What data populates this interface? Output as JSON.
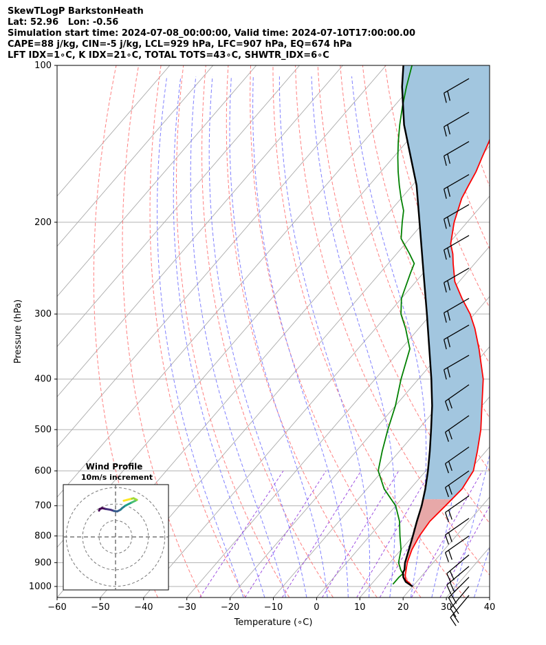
{
  "header": {
    "line1": "SkewTLogP BarkstonHeath",
    "line2": "Lat: 52.96   Lon: -0.56",
    "line3": "Simulation start time: 2024-07-08_00:00:00, Valid time: 2024-07-10T17:00:00.00",
    "line4": "CAPE=88 j/kg, CIN=-5 j/kg, LCL=929 hPa, LFC=907 hPa, EQ=674 hPa",
    "line5": "LFT IDX=1∘C, K IDX=21∘C, TOTAL TOTS=43∘C, SHWTR_IDX=6∘C"
  },
  "chart_data": {
    "type": "skewt",
    "xlabel": "Temperature (∘C)",
    "ylabel": "Pressure (hPa)",
    "xlim": [
      -60,
      40
    ],
    "ylim": [
      1050,
      100
    ],
    "x_ticks": [
      -60,
      -50,
      -40,
      -30,
      -20,
      -10,
      0,
      10,
      20,
      30,
      40
    ],
    "y_ticks": [
      1000,
      900,
      800,
      700,
      600,
      500,
      400,
      300,
      200,
      100
    ],
    "grid": true,
    "temperature": {
      "color": "#ff0000",
      "points": [
        [
          1000,
          20
        ],
        [
          970,
          17
        ],
        [
          950,
          16
        ],
        [
          900,
          14
        ],
        [
          850,
          12.5
        ],
        [
          800,
          11.5
        ],
        [
          750,
          11
        ],
        [
          700,
          11.5
        ],
        [
          650,
          12
        ],
        [
          600,
          11
        ],
        [
          550,
          8
        ],
        [
          500,
          4.5
        ],
        [
          450,
          0
        ],
        [
          400,
          -5
        ],
        [
          350,
          -12
        ],
        [
          320,
          -17
        ],
        [
          300,
          -21
        ],
        [
          280,
          -26
        ],
        [
          260,
          -31
        ],
        [
          240,
          -35
        ],
        [
          230,
          -37
        ],
        [
          220,
          -39.5
        ],
        [
          200,
          -43
        ],
        [
          180,
          -46
        ],
        [
          170,
          -47
        ],
        [
          160,
          -48
        ],
        [
          150,
          -49.5
        ],
        [
          140,
          -51
        ],
        [
          130,
          -53
        ],
        [
          120,
          -56
        ],
        [
          110,
          -60
        ],
        [
          100,
          -65
        ]
      ]
    },
    "dewpoint": {
      "color": "#008000",
      "points": [
        [
          990,
          15
        ],
        [
          960,
          15
        ],
        [
          945,
          15.2
        ],
        [
          930,
          14
        ],
        [
          900,
          12
        ],
        [
          850,
          10
        ],
        [
          800,
          7
        ],
        [
          750,
          4
        ],
        [
          700,
          0
        ],
        [
          650,
          -6
        ],
        [
          600,
          -11
        ],
        [
          550,
          -14
        ],
        [
          500,
          -17
        ],
        [
          450,
          -20
        ],
        [
          400,
          -24
        ],
        [
          350,
          -28
        ],
        [
          320,
          -33
        ],
        [
          300,
          -37
        ],
        [
          280,
          -40
        ],
        [
          250,
          -43
        ],
        [
          240,
          -44
        ],
        [
          230,
          -47
        ],
        [
          215,
          -52
        ],
        [
          200,
          -55
        ],
        [
          190,
          -57
        ],
        [
          180,
          -60
        ],
        [
          170,
          -63
        ],
        [
          160,
          -66
        ],
        [
          150,
          -69
        ],
        [
          140,
          -72
        ],
        [
          130,
          -75
        ],
        [
          120,
          -78
        ],
        [
          110,
          -81
        ],
        [
          100,
          -84
        ]
      ]
    },
    "parcel": {
      "color": "#000000",
      "points": [
        [
          1000,
          20
        ],
        [
          980,
          17.5
        ],
        [
          960,
          16
        ],
        [
          940,
          15
        ],
        [
          929,
          14.8
        ],
        [
          900,
          13.5
        ],
        [
          850,
          11.8
        ],
        [
          800,
          10
        ],
        [
          750,
          8
        ],
        [
          700,
          6
        ],
        [
          650,
          3.5
        ],
        [
          600,
          0.5
        ],
        [
          550,
          -3
        ],
        [
          500,
          -7
        ],
        [
          450,
          -11.5
        ],
        [
          400,
          -17
        ],
        [
          350,
          -23.5
        ],
        [
          300,
          -31
        ],
        [
          250,
          -40
        ],
        [
          200,
          -51
        ],
        [
          170,
          -59
        ],
        [
          150,
          -66
        ],
        [
          130,
          -74
        ],
        [
          110,
          -82
        ],
        [
          100,
          -86
        ]
      ]
    },
    "cape_fill_color": "#a2c6df",
    "cin_fill_color": "#e7a8a8",
    "isotherm_color": "#aaaaaa",
    "dry_adiabat_color": "#ff7f7f",
    "moist_adiabat_color": "#7f7fff",
    "mixing_ratio_color": "#9d4ee0",
    "wind_barbs": [
      {
        "p": 1040,
        "dir": 220,
        "speed": 20
      },
      {
        "p": 1000,
        "dir": 220,
        "speed": 20
      },
      {
        "p": 960,
        "dir": 225,
        "speed": 20
      },
      {
        "p": 915,
        "dir": 230,
        "speed": 20
      },
      {
        "p": 870,
        "dir": 230,
        "speed": 20
      },
      {
        "p": 800,
        "dir": 235,
        "speed": 20
      },
      {
        "p": 740,
        "dir": 235,
        "speed": 20
      },
      {
        "p": 670,
        "dir": 235,
        "speed": 20
      },
      {
        "p": 600,
        "dir": 235,
        "speed": 20
      },
      {
        "p": 540,
        "dir": 235,
        "speed": 20
      },
      {
        "p": 470,
        "dir": 235,
        "speed": 20
      },
      {
        "p": 410,
        "dir": 235,
        "speed": 20
      },
      {
        "p": 360,
        "dir": 240,
        "speed": 20
      },
      {
        "p": 315,
        "dir": 240,
        "speed": 20
      },
      {
        "p": 280,
        "dir": 240,
        "speed": 20
      },
      {
        "p": 245,
        "dir": 240,
        "speed": 20
      },
      {
        "p": 212,
        "dir": 240,
        "speed": 20
      },
      {
        "p": 185,
        "dir": 240,
        "speed": 20
      },
      {
        "p": 162,
        "dir": 240,
        "speed": 20
      },
      {
        "p": 140,
        "dir": 240,
        "speed": 20
      },
      {
        "p": 123,
        "dir": 240,
        "speed": 20
      },
      {
        "p": 106,
        "dir": 240,
        "speed": 20
      }
    ],
    "hodograph": {
      "title": "Wind Profile",
      "subtitle": "10m/s increment",
      "rings_ms": [
        10,
        20,
        30
      ],
      "range_ms": 32,
      "points": [
        [
          -10,
          16
        ],
        [
          -9.5,
          17
        ],
        [
          -8,
          17.5
        ],
        [
          -6,
          17
        ],
        [
          -3,
          16.5
        ],
        [
          -1,
          15.8
        ],
        [
          1,
          15.5
        ],
        [
          3,
          16.5
        ],
        [
          4,
          17.5
        ],
        [
          6,
          19
        ],
        [
          8,
          20
        ],
        [
          10,
          21
        ],
        [
          12,
          22
        ],
        [
          13,
          22.5
        ],
        [
          11,
          23.5
        ],
        [
          9,
          23
        ],
        [
          7,
          22.5
        ],
        [
          5,
          22
        ]
      ]
    }
  }
}
